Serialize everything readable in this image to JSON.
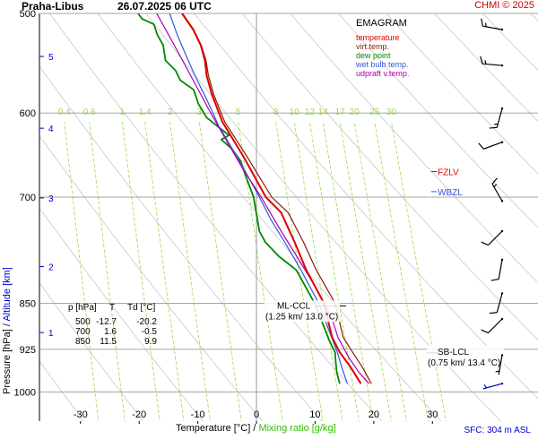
{
  "header": {
    "station": "Praha-Libus",
    "datetime": "26.07.2025 06 UTC",
    "credit": "CHMI © 2025"
  },
  "footer": {
    "surface_elevation": "SFC: 304 m ASL"
  },
  "colors": {
    "temperature": "#e00000",
    "virt_temp": "#8b1a00",
    "dew_point": "#008800",
    "wet_bulb": "#3355dd",
    "updraft": "#aa00aa",
    "mixing": "#99dd55",
    "altitude": "#0000cc",
    "grid": "#888888"
  },
  "chart_data": {
    "type": "line",
    "title": "EMAGRAM",
    "xlabel": "Temperature [°C]",
    "xlabel_separator": "/",
    "xlabel2": "Mixing ratio [g/kg]",
    "ylabel": "Pressure [hPa]",
    "ylabel_separator": "/",
    "ylabel2": "Altitude [km]",
    "y_scale": "log",
    "xlim": [
      -37,
      48
    ],
    "ylim": [
      1055,
      500
    ],
    "x_ticks": [
      -30,
      -20,
      -10,
      0,
      10,
      20,
      30
    ],
    "y_ticks": [
      500,
      600,
      700,
      850,
      925,
      1000
    ],
    "altitude_ticks": [
      {
        "label": "1",
        "p": 897
      },
      {
        "label": "2",
        "p": 795
      },
      {
        "label": "3",
        "p": 701
      },
      {
        "label": "4",
        "p": 617
      },
      {
        "label": "5",
        "p": 541
      }
    ],
    "mixing_ratio_labels": [
      "0.4",
      "0.6",
      "1",
      "1.4",
      "2",
      "3",
      "5",
      "8",
      "10",
      "12",
      "14",
      "17",
      "20",
      "25",
      "30"
    ],
    "mixing_ratio_label_p": 610,
    "legend": [
      {
        "name": "temperature",
        "color": "#e00000"
      },
      {
        "name": "virt.temp.",
        "color": "#8b1a00"
      },
      {
        "name": "dew point",
        "color": "#008800"
      },
      {
        "name": "wet bulb temp.",
        "color": "#3355dd"
      },
      {
        "name": "udpraft v.temp.",
        "color": "#aa00aa"
      }
    ],
    "series": [
      {
        "name": "temperature",
        "color": "#e00000",
        "points": [
          [
            17.8,
            985
          ],
          [
            16,
            955
          ],
          [
            14.2,
            930
          ],
          [
            12.9,
            905
          ],
          [
            11.5,
            850
          ],
          [
            8.5,
            800
          ],
          [
            6.5,
            760
          ],
          [
            4.2,
            720
          ],
          [
            1.6,
            700
          ],
          [
            -2.2,
            650
          ],
          [
            -5.8,
            610
          ],
          [
            -7.6,
            580
          ],
          [
            -8.5,
            560
          ],
          [
            -8.8,
            545
          ],
          [
            -9.5,
            530
          ],
          [
            -10.8,
            515
          ],
          [
            -12.7,
            500
          ]
        ]
      },
      {
        "name": "virt.temp.",
        "color": "#8b1a00",
        "points": [
          [
            19.6,
            985
          ],
          [
            18,
            955
          ],
          [
            16.4,
            930
          ],
          [
            14.8,
            905
          ],
          [
            13.4,
            850
          ],
          [
            10.2,
            800
          ],
          [
            8,
            760
          ],
          [
            5.4,
            720
          ],
          [
            2.6,
            700
          ],
          [
            -1.6,
            650
          ],
          [
            -5.4,
            610
          ],
          [
            -7.3,
            580
          ],
          [
            -8.2,
            560
          ],
          [
            -8.6,
            545
          ],
          [
            -9.4,
            530
          ],
          [
            -10.7,
            515
          ],
          [
            -12.6,
            500
          ]
        ]
      },
      {
        "name": "dew point",
        "color": "#008800",
        "points": [
          [
            14.2,
            985
          ],
          [
            13.7,
            965
          ],
          [
            13.5,
            945
          ],
          [
            13.4,
            930
          ],
          [
            12.4,
            910
          ],
          [
            11.2,
            880
          ],
          [
            9.9,
            850
          ],
          [
            6.8,
            800
          ],
          [
            3.8,
            780
          ],
          [
            1.5,
            760
          ],
          [
            0.5,
            745
          ],
          [
            -0.5,
            700
          ],
          [
            -2,
            670
          ],
          [
            -2.7,
            655
          ],
          [
            -4.3,
            640
          ],
          [
            -6,
            630
          ],
          [
            -4.7,
            625
          ],
          [
            -8.5,
            605
          ],
          [
            -9.9,
            590
          ],
          [
            -10.7,
            575
          ],
          [
            -13,
            565
          ],
          [
            -13.8,
            555
          ],
          [
            -15.5,
            545
          ],
          [
            -15.9,
            530
          ],
          [
            -16.9,
            520
          ],
          [
            -17.5,
            510
          ],
          [
            -19.5,
            505
          ],
          [
            -20.2,
            500
          ]
        ]
      },
      {
        "name": "wet bulb temp.",
        "color": "#3355dd",
        "points": [
          [
            15.5,
            985
          ],
          [
            14.5,
            955
          ],
          [
            13.8,
            930
          ],
          [
            12.8,
            905
          ],
          [
            10.6,
            850
          ],
          [
            7.6,
            800
          ],
          [
            4.8,
            760
          ],
          [
            2.5,
            730
          ],
          [
            0.5,
            700
          ],
          [
            -3.3,
            650
          ],
          [
            -6.4,
            615
          ],
          [
            -8.5,
            585
          ],
          [
            -10.5,
            560
          ],
          [
            -12,
            540
          ],
          [
            -13.5,
            520
          ],
          [
            -14.8,
            500
          ]
        ]
      },
      {
        "name": "udpraft v.temp.",
        "color": "#aa00aa",
        "points": [
          [
            19.2,
            985
          ],
          [
            17.5,
            965
          ],
          [
            15.8,
            940
          ],
          [
            13.9,
            905
          ],
          [
            12.9,
            875
          ],
          [
            10.7,
            835
          ],
          [
            7.6,
            790
          ],
          [
            4.2,
            745
          ],
          [
            0.8,
            700
          ],
          [
            -2.3,
            665
          ],
          [
            -4.8,
            635
          ],
          [
            -7.8,
            600
          ],
          [
            -10.8,
            565
          ],
          [
            -14,
            530
          ],
          [
            -17,
            500
          ]
        ]
      }
    ],
    "levels": [
      {
        "name": "FZLV",
        "p": 668,
        "color": "#e00000"
      },
      {
        "name": "WBZL",
        "p": 693,
        "color": "#3355dd"
      }
    ],
    "annotations": [
      {
        "label": "ML-CCL",
        "detail": "(1.25 km/ 13.0 °C)",
        "p": 857,
        "t": 13.0
      },
      {
        "label": "SB-LCL",
        "detail": "(0.75 km/ 13.4 °C)",
        "p": 928,
        "t": 13.4
      }
    ],
    "table": {
      "headers": [
        "p [hPa]",
        "T",
        "Td [°C]"
      ],
      "rows": [
        [
          "500",
          "-12.7",
          "-20.2"
        ],
        [
          "700",
          "1.6",
          "-0.5"
        ],
        [
          "850",
          "11.5",
          "9.9"
        ]
      ]
    },
    "wind_barbs": [
      {
        "p": 515,
        "dir": 280,
        "kt": 15
      },
      {
        "p": 550,
        "dir": 275,
        "kt": 15
      },
      {
        "p": 595,
        "dir": 195,
        "kt": 15
      },
      {
        "p": 633,
        "dir": 250,
        "kt": 10
      },
      {
        "p": 705,
        "dir": 330,
        "kt": 15
      },
      {
        "p": 745,
        "dir": 225,
        "kt": 10
      },
      {
        "p": 785,
        "dir": 190,
        "kt": 10
      },
      {
        "p": 835,
        "dir": 195,
        "kt": 10
      },
      {
        "p": 875,
        "dir": 225,
        "kt": 10
      },
      {
        "p": 935,
        "dir": 190,
        "kt": 5
      },
      {
        "p": 985,
        "dir": 255,
        "kt": 5
      }
    ]
  }
}
